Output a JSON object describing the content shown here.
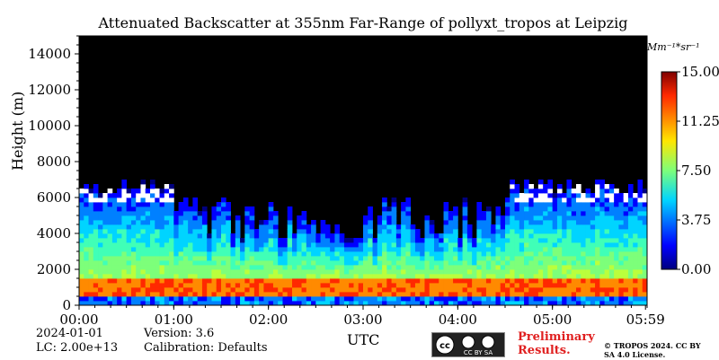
{
  "chart_data": {
    "type": "heatmap",
    "title": "Attenuated Backscatter at 355nm Far-Range of pollyxt_tropos at Leipzig",
    "xlabel": "UTC",
    "ylabel": "Height (m)",
    "x_ticks": [
      "00:00",
      "01:00",
      "02:00",
      "03:00",
      "04:00",
      "05:00",
      "05:59"
    ],
    "x_range_hours": [
      0,
      6
    ],
    "y_ticks": [
      0,
      2000,
      4000,
      6000,
      8000,
      10000,
      12000,
      14000
    ],
    "ylim": [
      0,
      15000
    ],
    "colorbar": {
      "label": "Mm⁻¹*sr⁻¹",
      "ticks": [
        "0.00",
        "3.75",
        "7.50",
        "11.25",
        "15.00"
      ],
      "range": [
        0,
        15
      ],
      "colormap": "jet"
    },
    "features": {
      "boundary_layer_top_m": 1400,
      "aerosol_top_m": 6000,
      "cloud_layer_m": [
        5500,
        8000
      ],
      "cloud_periods_utc": [
        "00:00-01:00",
        "04:30-05:59"
      ]
    }
  },
  "meta": {
    "date": "2024-01-01",
    "lc": "LC: 2.00e+13",
    "version": "Version: 3.6",
    "calibration": "Calibration: Defaults",
    "preliminary": "Preliminary Results.",
    "copyright": "© TROPOS 2024. CC BY SA 4.0 License.",
    "license_badge": "CC BY SA"
  },
  "colors": {
    "background": "#000000",
    "low": "#0000ff",
    "high": "#ff0000"
  }
}
